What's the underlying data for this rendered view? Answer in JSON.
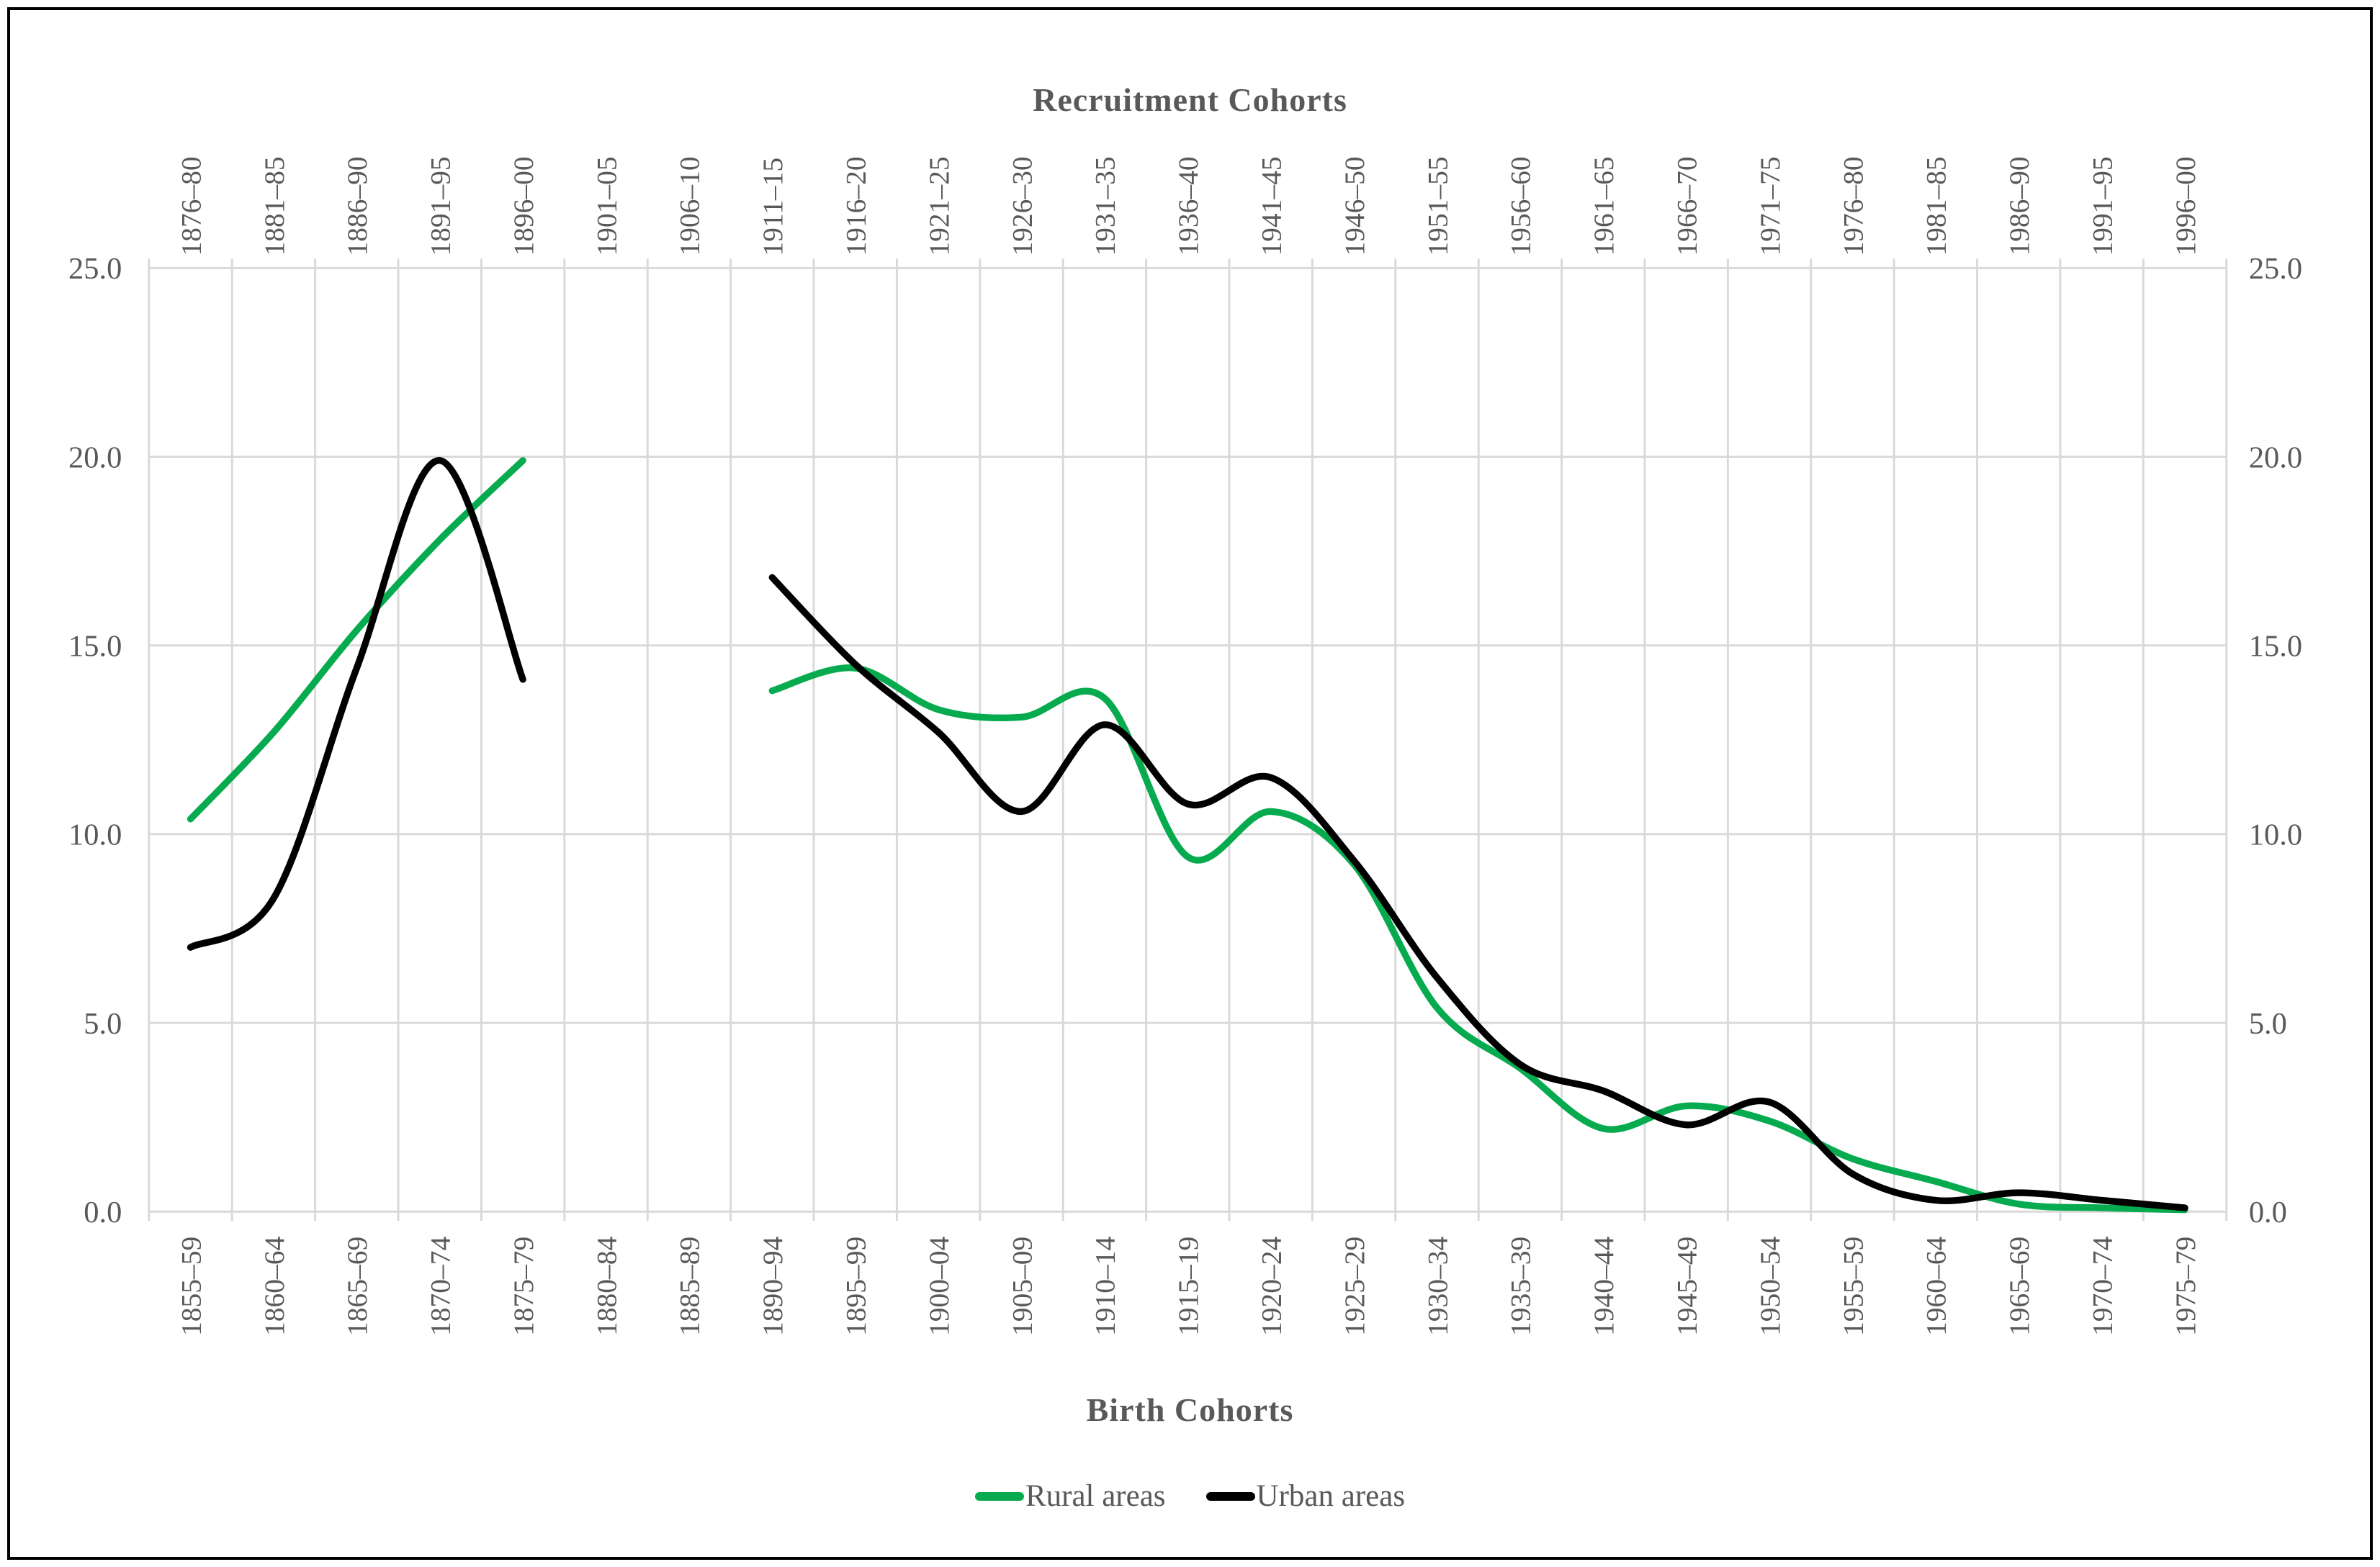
{
  "titles": {
    "top_axis": "Recruitment Cohorts",
    "bottom_axis": "Birth Cohorts"
  },
  "colors": {
    "rural": "#07AB4F",
    "urban": "#000000",
    "gridline": "#D9D9D9",
    "text": "#595959",
    "frame_border": "#000000",
    "background": "#FFFFFF"
  },
  "chart_data": {
    "type": "line",
    "smooth": true,
    "grid": true,
    "legend_position": "bottom",
    "ylim": [
      0,
      25
    ],
    "y_tick_step": 5,
    "y_tick_labels": [
      "0.0",
      "5.0",
      "10.0",
      "15.0",
      "20.0",
      "25.0"
    ],
    "y_axis_sides": [
      "left",
      "right"
    ],
    "categories_birth": [
      "1855–59",
      "1860–64",
      "1865–69",
      "1870–74",
      "1875–79",
      "1880–84",
      "1885–89",
      "1890–94",
      "1895–99",
      "1900–04",
      "1905–09",
      "1910–14",
      "1915–19",
      "1920–24",
      "1925–29",
      "1930–34",
      "1935–39",
      "1940–44",
      "1945–49",
      "1950–54",
      "1955–59",
      "1960–64",
      "1965–69",
      "1970–74",
      "1975–79"
    ],
    "categories_recruitment": [
      "1876–80",
      "1881–85",
      "1886–90",
      "1891–95",
      "1896–00",
      "1901–05",
      "1906–10",
      "1911–15",
      "1916–20",
      "1921–25",
      "1926–30",
      "1931–35",
      "1936–40",
      "1941–45",
      "1946–50",
      "1951–55",
      "1956–60",
      "1961–65",
      "1966–70",
      "1971–75",
      "1976–80",
      "1981–85",
      "1986–90",
      "1991–95",
      "1996–00"
    ],
    "series": [
      {
        "name": "Rural areas",
        "color": "#07AB4F",
        "values": [
          10.4,
          12.7,
          15.4,
          17.8,
          19.9,
          null,
          null,
          13.8,
          14.4,
          13.3,
          13.1,
          13.6,
          9.4,
          10.6,
          9.2,
          5.4,
          3.8,
          2.2,
          2.8,
          2.4,
          1.4,
          0.8,
          0.2,
          0.1,
          0.05
        ]
      },
      {
        "name": "Urban areas",
        "color": "#000000",
        "values": [
          7.0,
          8.3,
          14.4,
          19.9,
          14.1,
          null,
          null,
          16.8,
          14.5,
          12.7,
          10.6,
          12.9,
          10.8,
          11.5,
          9.3,
          6.2,
          3.9,
          3.2,
          2.3,
          2.9,
          1.0,
          0.3,
          0.5,
          0.3,
          0.1
        ]
      }
    ]
  }
}
